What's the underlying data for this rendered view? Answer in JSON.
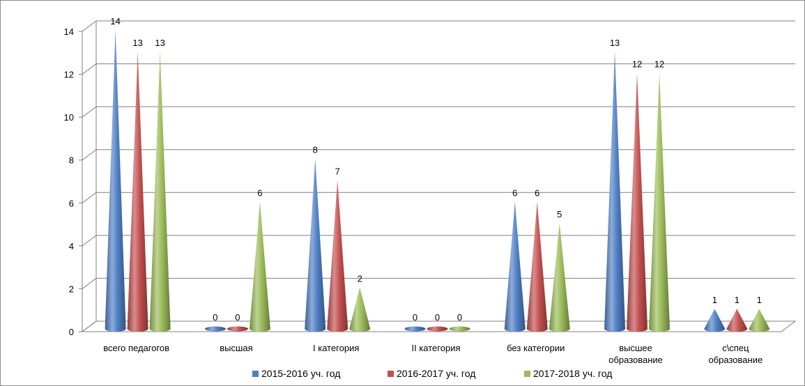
{
  "chart_data": {
    "type": "bar",
    "shape": "cone-3d",
    "title": "",
    "xlabel": "",
    "ylabel": "",
    "ylim": [
      0,
      14
    ],
    "yticks": [
      0,
      2,
      4,
      6,
      8,
      10,
      12,
      14
    ],
    "grid": true,
    "legend_position": "bottom",
    "categories": [
      [
        "всего педагогов"
      ],
      [
        "высшая"
      ],
      [
        "I категория"
      ],
      [
        "II категория"
      ],
      [
        "без категории"
      ],
      [
        "высшее",
        "образование"
      ],
      [
        "с\\спец",
        "образование"
      ]
    ],
    "series": [
      {
        "name": "2015-2016 уч. год",
        "color": "#4f7fc5",
        "values": [
          14,
          0,
          8,
          0,
          6,
          13,
          1
        ]
      },
      {
        "name": "2016-2017 уч. год",
        "color": "#c3504f",
        "values": [
          13,
          0,
          7,
          0,
          6,
          12,
          1
        ]
      },
      {
        "name": "2017-2018 уч. год",
        "color": "#9bbb59",
        "values": [
          13,
          6,
          2,
          0,
          5,
          12,
          1
        ]
      }
    ]
  }
}
